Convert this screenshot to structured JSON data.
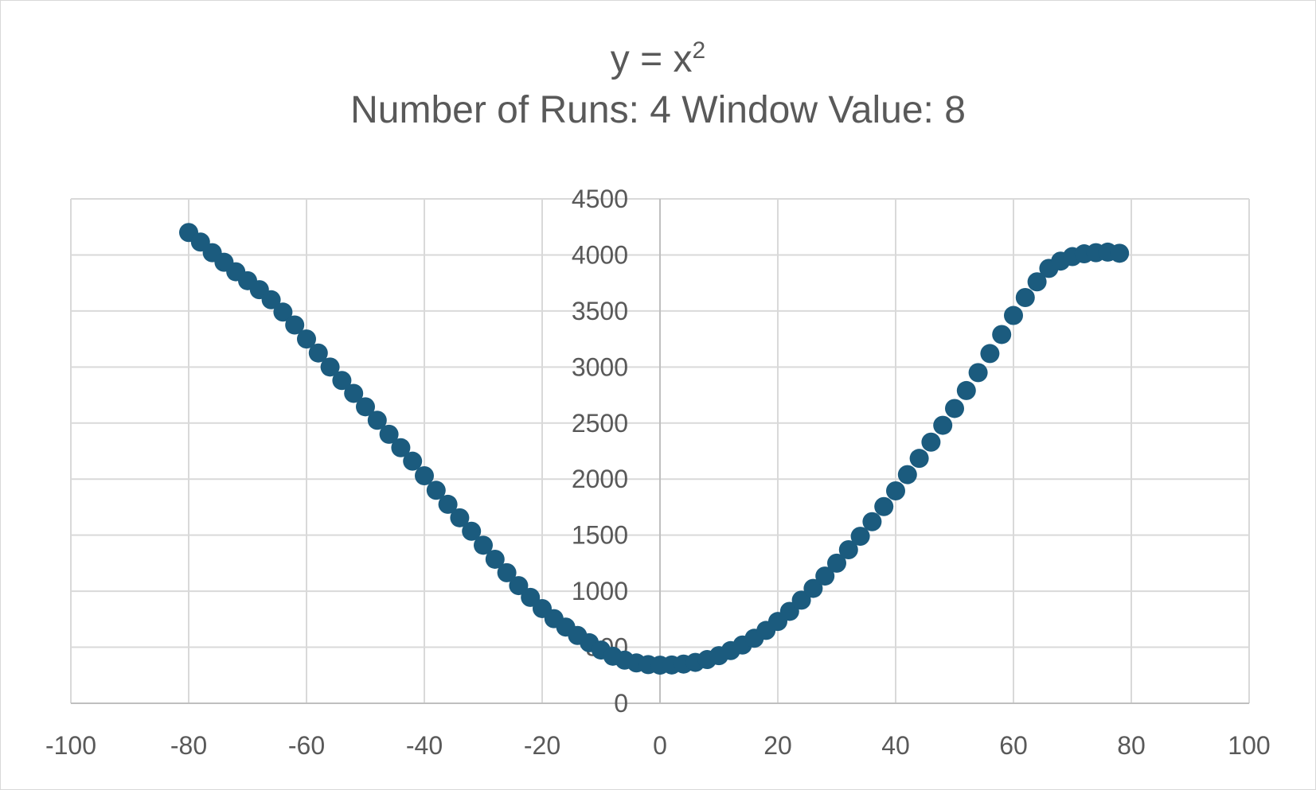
{
  "chart_data": {
    "type": "scatter",
    "title": "y = x",
    "title_superscript": "2",
    "subtitle": "Number of Runs: 4 Window Value: 8",
    "xlim": [
      -100,
      100
    ],
    "ylim": [
      0,
      4500
    ],
    "x_ticks": [
      "-100",
      "-80",
      "-60",
      "-40",
      "-20",
      "0",
      "20",
      "40",
      "60",
      "80",
      "100"
    ],
    "y_ticks": [
      "0",
      "500",
      "1000",
      "1500",
      "2000",
      "2500",
      "3000",
      "3500",
      "4000",
      "4500"
    ],
    "grid": true,
    "legend": "none",
    "marker_color": "#1b5b7e",
    "x": [
      -80,
      -78,
      -76,
      -74,
      -72,
      -70,
      -68,
      -66,
      -64,
      -62,
      -60,
      -58,
      -56,
      -54,
      -52,
      -50,
      -48,
      -46,
      -44,
      -42,
      -40,
      -38,
      -36,
      -34,
      -32,
      -30,
      -28,
      -26,
      -24,
      -22,
      -20,
      -18,
      -16,
      -14,
      -12,
      -10,
      -8,
      -6,
      -4,
      -2,
      0,
      2,
      4,
      6,
      8,
      10,
      12,
      14,
      16,
      18,
      20,
      22,
      24,
      26,
      28,
      30,
      32,
      34,
      36,
      38,
      40,
      42,
      44,
      46,
      48,
      50,
      52,
      54,
      56,
      58,
      60,
      62,
      64,
      66,
      68,
      70,
      72,
      74,
      76,
      78
    ],
    "y": [
      4200,
      4115,
      4020,
      3935,
      3850,
      3770,
      3690,
      3600,
      3490,
      3375,
      3250,
      3125,
      3000,
      2880,
      2765,
      2645,
      2525,
      2400,
      2280,
      2160,
      2030,
      1900,
      1775,
      1655,
      1535,
      1410,
      1285,
      1165,
      1050,
      945,
      845,
      755,
      680,
      605,
      540,
      475,
      420,
      385,
      360,
      345,
      340,
      342,
      350,
      365,
      390,
      425,
      470,
      520,
      580,
      650,
      730,
      820,
      920,
      1025,
      1135,
      1250,
      1370,
      1490,
      1620,
      1755,
      1895,
      2040,
      2185,
      2330,
      2480,
      2630,
      2790,
      2950,
      3120,
      3290,
      3460,
      3620,
      3760,
      3880,
      3945,
      3985,
      4010,
      4020,
      4025,
      4015
    ]
  }
}
